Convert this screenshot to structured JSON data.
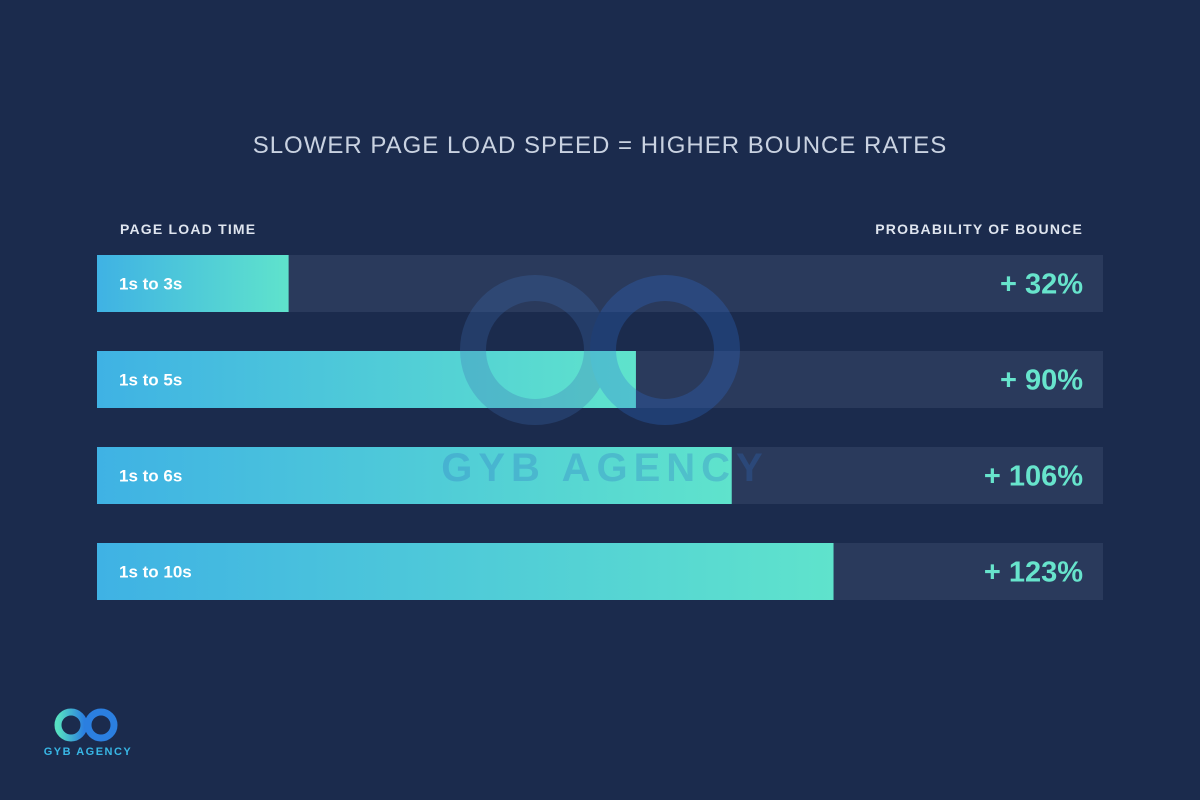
{
  "header": {
    "title": "SLOWER PAGE LOAD SPEED = HIGHER BOUNCE RATES",
    "left_column": "PAGE LOAD TIME",
    "right_column": "PROBABILITY OF BOUNCE"
  },
  "watermark": {
    "text": "GYB AGENCY"
  },
  "brand": {
    "name": "GYB AGENCY"
  },
  "colors": {
    "background": "#1b2b4d",
    "track": "#2a3a5c",
    "bar_start": "#3fb2e4",
    "bar_end": "#5fe3cc",
    "value_text": "#67e4cc",
    "label_text": "#ffffff"
  },
  "chart_data": {
    "type": "bar",
    "orientation": "horizontal",
    "title": "SLOWER PAGE LOAD SPEED = HIGHER BOUNCE RATES",
    "categories": [
      "1s to 3s",
      "1s to 5s",
      "1s to 6s",
      "1s to 10s"
    ],
    "values": [
      32,
      90,
      106,
      123
    ],
    "value_labels": [
      "+ 32%",
      "+ 90%",
      "+ 106%",
      "+ 123%"
    ],
    "xlabel": "PAGE LOAD TIME",
    "ylabel": "PROBABILITY OF BOUNCE",
    "xlim": [
      0,
      168
    ],
    "grid": false,
    "legend": "none"
  }
}
